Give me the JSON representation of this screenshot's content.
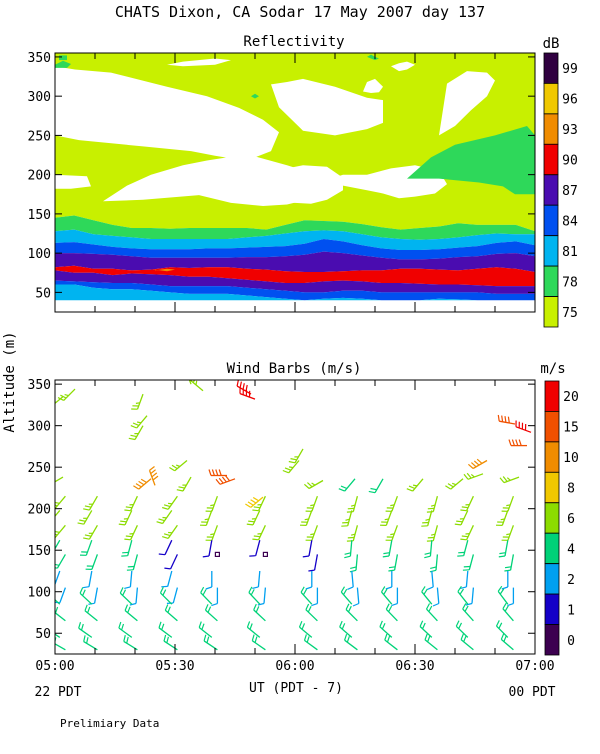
{
  "title": "CHATS Dixon, CA  Sodar  17 May 2007  day 137",
  "ylabel_shared": "Altitude (m)",
  "footer_note": "Prelimiary Data",
  "colors": {
    "refl_levels": [
      "#c8f000",
      "#2ed85a",
      "#00b4f0",
      "#0050f0",
      "#4a0cb0",
      "#f00000",
      "#f08c00",
      "#f0c800",
      "#300040"
    ],
    "wind_levels": [
      "#3c0050",
      "#1400c8",
      "#00a0f0",
      "#00d278",
      "#8cdc00",
      "#f0c800",
      "#f08c00",
      "#f05000",
      "#f00000"
    ]
  },
  "chart_data": [
    {
      "type": "heatmap",
      "title": "Reflectivity",
      "colorbar_unit": "dB",
      "colorbar_ticks": [
        "99",
        "96",
        "93",
        "90",
        "87",
        "84",
        "81",
        "78",
        "75"
      ],
      "yticks": [
        "350",
        "300",
        "250",
        "200",
        "150",
        "100",
        "50"
      ],
      "ylim": [
        25,
        355
      ],
      "xlim": [
        0,
        120
      ],
      "bands": [
        {
          "level": "75",
          "lower": [
            145,
            148,
            142,
            136,
            132,
            132,
            131,
            132,
            132,
            132,
            132,
            130,
            136,
            142,
            141,
            140,
            137,
            133,
            130,
            132,
            134,
            138,
            136,
            136,
            136,
            128
          ],
          "upper": [
            355,
            355,
            355,
            355,
            355,
            355,
            355,
            355,
            355,
            355,
            355,
            355,
            355,
            355,
            355,
            355,
            355,
            355,
            355,
            355,
            355,
            355,
            355,
            355,
            355,
            355
          ]
        },
        {
          "level": "78",
          "lower": [
            128,
            130,
            124,
            122,
            120,
            118,
            118,
            118,
            118,
            118,
            120,
            122,
            125,
            128,
            129,
            128,
            124,
            120,
            118,
            117,
            118,
            120,
            123,
            125,
            124,
            124
          ],
          "upper": [
            145,
            148,
            142,
            136,
            132,
            132,
            131,
            132,
            132,
            132,
            132,
            130,
            136,
            142,
            141,
            140,
            137,
            133,
            130,
            132,
            134,
            138,
            136,
            136,
            136,
            128
          ]
        },
        {
          "level": "81",
          "lower": [
            113,
            114,
            111,
            108,
            106,
            105,
            105,
            105,
            106,
            106,
            107,
            108,
            109,
            112,
            118,
            115,
            110,
            106,
            104,
            104,
            105,
            107,
            109,
            113,
            115,
            110
          ],
          "upper": [
            128,
            130,
            124,
            122,
            120,
            118,
            118,
            118,
            118,
            118,
            120,
            122,
            125,
            128,
            129,
            128,
            124,
            120,
            118,
            117,
            118,
            120,
            123,
            125,
            124,
            124
          ]
        },
        {
          "level": "84",
          "lower": [
            100,
            100,
            99,
            98,
            96,
            94,
            94,
            94,
            94,
            94,
            95,
            95,
            96,
            98,
            102,
            100,
            97,
            94,
            92,
            92,
            93,
            95,
            96,
            99,
            100,
            96
          ],
          "upper": [
            113,
            114,
            111,
            108,
            106,
            105,
            105,
            105,
            106,
            106,
            107,
            108,
            109,
            112,
            118,
            115,
            110,
            106,
            104,
            104,
            105,
            107,
            109,
            113,
            115,
            110
          ]
        },
        {
          "level": "87",
          "lower": [
            82,
            84,
            80,
            80,
            78,
            79,
            82,
            81,
            82,
            82,
            80,
            79,
            77,
            76,
            76,
            77,
            78,
            78,
            80,
            80,
            79,
            78,
            80,
            82,
            80,
            76
          ],
          "upper": [
            100,
            100,
            99,
            98,
            96,
            94,
            94,
            94,
            94,
            94,
            95,
            95,
            96,
            98,
            102,
            100,
            97,
            94,
            92,
            92,
            93,
            95,
            96,
            99,
            100,
            96
          ]
        },
        {
          "level": "90",
          "lower": [
            78,
            75,
            75,
            72,
            74,
            73,
            72,
            70,
            70,
            68,
            66,
            64,
            62,
            62,
            64,
            65,
            64,
            62,
            62,
            61,
            60,
            60,
            59,
            58,
            58,
            58
          ],
          "upper": [
            82,
            84,
            80,
            80,
            78,
            79,
            82,
            81,
            82,
            82,
            80,
            79,
            77,
            76,
            76,
            77,
            78,
            78,
            80,
            80,
            79,
            78,
            80,
            82,
            80,
            76
          ]
        },
        {
          "level": "87",
          "lower": [
            65,
            64,
            63,
            62,
            62,
            60,
            58,
            58,
            58,
            58,
            56,
            54,
            52,
            50,
            50,
            52,
            52,
            50,
            50,
            50,
            50,
            50,
            50,
            48,
            48,
            48
          ],
          "upper": [
            78,
            75,
            75,
            72,
            74,
            73,
            72,
            70,
            70,
            68,
            66,
            64,
            62,
            62,
            64,
            65,
            64,
            62,
            62,
            61,
            60,
            60,
            59,
            58,
            58,
            58
          ]
        },
        {
          "level": "84",
          "lower": [
            60,
            60,
            56,
            54,
            54,
            52,
            50,
            48,
            48,
            48,
            46,
            44,
            42,
            40,
            42,
            43,
            42,
            40,
            40,
            40,
            42,
            41,
            40,
            40,
            40,
            40
          ],
          "upper": [
            65,
            64,
            63,
            62,
            62,
            60,
            58,
            58,
            58,
            58,
            56,
            54,
            52,
            50,
            50,
            52,
            52,
            50,
            50,
            50,
            50,
            50,
            50,
            48,
            48,
            48
          ]
        },
        {
          "level": "81",
          "lower": [
            40,
            40,
            40,
            40,
            40,
            40,
            40,
            40,
            40,
            40,
            40,
            40,
            40,
            40,
            40,
            40,
            40,
            40,
            40,
            40,
            40,
            40,
            40,
            40,
            40,
            40
          ],
          "upper": [
            60,
            60,
            56,
            54,
            54,
            52,
            50,
            48,
            48,
            48,
            46,
            44,
            42,
            40,
            42,
            43,
            42,
            40,
            40,
            40,
            42,
            41,
            40,
            40,
            40,
            40
          ]
        }
      ],
      "blobs": [
        {
          "level": "78",
          "x": [
            88,
            96,
            106,
            112,
            115,
            120,
            120,
            118,
            110,
            100,
            94,
            88
          ],
          "y": [
            195,
            195,
            190,
            185,
            175,
            175,
            250,
            262,
            250,
            238,
            222,
            195
          ]
        },
        {
          "level": "78",
          "x": [
            0,
            2,
            4,
            3,
            0
          ],
          "y": [
            340,
            345,
            341,
            336,
            336
          ]
        },
        {
          "level": "78",
          "x": [
            1,
            3,
            3,
            1
          ],
          "y": [
            352,
            352,
            346,
            346
          ]
        },
        {
          "level": "78",
          "x": [
            78,
            79,
            80,
            81,
            80,
            79
          ],
          "y": [
            350,
            353,
            350,
            348,
            346,
            348
          ]
        },
        {
          "level": "78",
          "x": [
            49,
            50,
            51,
            50
          ],
          "y": [
            300,
            303,
            300,
            297
          ]
        },
        {
          "level": "93",
          "x": [
            25,
            28,
            30,
            28,
            25
          ],
          "y": [
            78,
            80,
            79,
            77,
            79
          ]
        }
      ],
      "white_gaps": [
        {
          "x": [
            0,
            8,
            9,
            4,
            0
          ],
          "y": [
            200,
            198,
            185,
            182,
            182
          ]
        },
        {
          "x": [
            0,
            6,
            22,
            34,
            40,
            45,
            46,
            50,
            54,
            56,
            52,
            46,
            38,
            28,
            14,
            5,
            0
          ],
          "y": [
            250,
            244,
            236,
            230,
            224,
            220,
            220,
            222,
            230,
            254,
            270,
            285,
            300,
            312,
            330,
            334,
            338
          ]
        },
        {
          "x": [
            12,
            22,
            36,
            44,
            52,
            58,
            63,
            64,
            63,
            58,
            48,
            38,
            32,
            24,
            18,
            12
          ],
          "y": [
            166,
            168,
            174,
            164,
            160,
            162,
            168,
            186,
            204,
            212,
            226,
            218,
            212,
            200,
            186,
            166
          ]
        },
        {
          "x": [
            54,
            58,
            62,
            70,
            78,
            82,
            82,
            78,
            70,
            62,
            56,
            54
          ],
          "y": [
            315,
            318,
            322,
            312,
            298,
            295,
            266,
            258,
            250,
            256,
            286,
            315
          ]
        },
        {
          "x": [
            50,
            55,
            60,
            64,
            68,
            72,
            72,
            68,
            62,
            58,
            55,
            50
          ],
          "y": [
            170,
            168,
            164,
            163,
            168,
            180,
            196,
            210,
            212,
            208,
            190,
            170
          ]
        },
        {
          "x": [
            66,
            72,
            78,
            82,
            86,
            90,
            95,
            98,
            96,
            90,
            84,
            78,
            72,
            66
          ],
          "y": [
            190,
            186,
            180,
            176,
            170,
            172,
            176,
            188,
            205,
            212,
            208,
            200,
            200,
            190
          ]
        },
        {
          "x": [
            96,
            100,
            104,
            108,
            110,
            108,
            103,
            98,
            96
          ],
          "y": [
            250,
            262,
            282,
            300,
            320,
            330,
            332,
            316,
            250
          ]
        },
        {
          "x": [
            28,
            32,
            40,
            44,
            40,
            32,
            28
          ],
          "y": [
            340,
            344,
            348,
            346,
            340,
            338,
            340
          ]
        },
        {
          "x": [
            77,
            79,
            81,
            82,
            80,
            78,
            77
          ],
          "y": [
            306,
            304,
            305,
            312,
            322,
            318,
            306
          ]
        },
        {
          "x": [
            84,
            86,
            88,
            90,
            88,
            86,
            84
          ],
          "y": [
            338,
            342,
            344,
            340,
            334,
            332,
            338
          ]
        }
      ]
    },
    {
      "type": "scatter",
      "title": "Wind Barbs (m/s)",
      "colorbar_unit": "m/s",
      "colorbar_ticks": [
        "20",
        "15",
        "10",
        "8",
        "6",
        "4",
        "2",
        "1",
        "0"
      ],
      "yticks": [
        "350",
        "300",
        "250",
        "200",
        "150",
        "100",
        "50"
      ],
      "xticks": [
        "05:00",
        "05:30",
        "06:00",
        "06:30",
        "07:00"
      ],
      "xlabel": "UT  (PDT - 7)",
      "xlabel_left": "22 PDT",
      "xlabel_right": "00 PDT",
      "ylim": [
        25,
        355
      ],
      "xlim": [
        0,
        120
      ],
      "barbs": [
        {
          "t": 2,
          "z": 335,
          "s": 6,
          "d": 230
        },
        {
          "t": 5,
          "z": 344,
          "s": 6,
          "d": 225
        },
        {
          "t": 22,
          "z": 338,
          "s": 6,
          "d": 200
        },
        {
          "t": 23,
          "z": 312,
          "s": 6,
          "d": 220
        },
        {
          "t": 22,
          "z": 300,
          "s": 6,
          "d": 210
        },
        {
          "t": 34,
          "z": 350,
          "s": 6,
          "d": 340
        },
        {
          "t": 37,
          "z": 342,
          "s": 6,
          "d": 310
        },
        {
          "t": 49,
          "z": 338,
          "s": 20,
          "d": 300
        },
        {
          "t": 50,
          "z": 332,
          "s": 20,
          "d": 290
        },
        {
          "t": 62,
          "z": 272,
          "s": 6,
          "d": 210
        },
        {
          "t": 61,
          "z": 258,
          "s": 6,
          "d": 220
        },
        {
          "t": 115,
          "z": 302,
          "s": 15,
          "d": 280
        },
        {
          "t": 118,
          "z": 276,
          "s": 15,
          "d": 270
        },
        {
          "t": 119,
          "z": 292,
          "s": 20,
          "d": 290
        },
        {
          "t": 2,
          "z": 238,
          "s": 6,
          "d": 240
        },
        {
          "t": 24,
          "z": 236,
          "s": 10,
          "d": 230
        },
        {
          "t": 25,
          "z": 228,
          "s": 10,
          "d": 340
        },
        {
          "t": 33,
          "z": 258,
          "s": 6,
          "d": 230
        },
        {
          "t": 34,
          "z": 238,
          "s": 6,
          "d": 210
        },
        {
          "t": 43,
          "z": 240,
          "s": 15,
          "d": 270
        },
        {
          "t": 45,
          "z": 236,
          "s": 15,
          "d": 250
        },
        {
          "t": 52,
          "z": 214,
          "s": 8,
          "d": 230
        },
        {
          "t": 67,
          "z": 234,
          "s": 6,
          "d": 240
        },
        {
          "t": 75,
          "z": 236,
          "s": 4,
          "d": 220
        },
        {
          "t": 82,
          "z": 236,
          "s": 4,
          "d": 210
        },
        {
          "t": 92,
          "z": 236,
          "s": 6,
          "d": 220
        },
        {
          "t": 102,
          "z": 236,
          "s": 6,
          "d": 230
        },
        {
          "t": 108,
          "z": 258,
          "s": 10,
          "d": 240
        },
        {
          "t": 107,
          "z": 242,
          "s": 6,
          "d": 250
        },
        {
          "t": 116,
          "z": 238,
          "s": 6,
          "d": 250
        }
      ]
    }
  ]
}
